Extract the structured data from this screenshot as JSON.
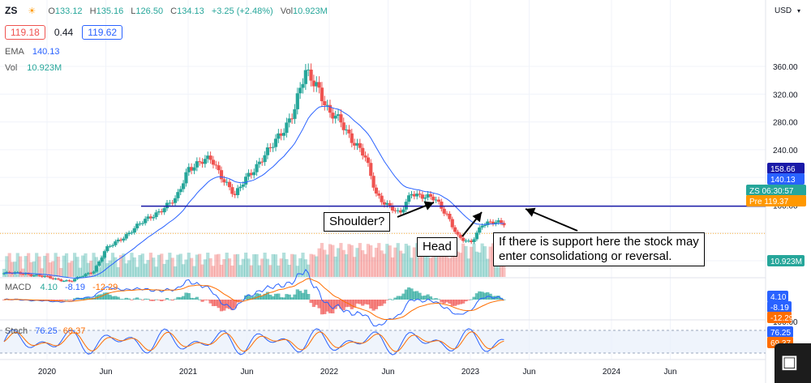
{
  "header": {
    "symbol": "ZS",
    "open_label": "O",
    "open": "133.12",
    "high_label": "H",
    "high": "135.16",
    "low_label": "L",
    "low": "126.50",
    "close_label": "C",
    "close": "134.13",
    "change": "+3.25 (+2.48%)",
    "vol_label": "Vol",
    "vol": "10.923M",
    "bid": "119.18",
    "spread": "0.44",
    "ask": "119.62",
    "ema_label": "EMA",
    "ema": "140.13",
    "vol_row_label": "Vol",
    "vol_row_value": "10.923M"
  },
  "axis": {
    "currency": "USD",
    "price_ticks": [
      "360.00",
      "320.00",
      "280.00",
      "240.00",
      "200.00",
      "160.00",
      "80.00"
    ],
    "time_labels": [
      "2020",
      "Jun",
      "2021",
      "Jun",
      "2022",
      "Jun",
      "2023",
      "Jun",
      "2024",
      "Jun"
    ],
    "stoch_ticks": [
      "100.00"
    ]
  },
  "badges": {
    "line": "158.66",
    "ema": "140.13",
    "symbol": "ZS",
    "countdown": "06:30:57",
    "pre_label": "Pre",
    "pre": "119.37",
    "volume": "10.923M",
    "macd1": "4.10",
    "macd2": "-8.19",
    "macd3": "-12.29",
    "stoch1": "76.25",
    "stoch2": "69.37"
  },
  "macd_legend": {
    "label": "MACD",
    "v1": "4.10",
    "v2": "-8.19",
    "v3": "-12.29"
  },
  "stoch_legend": {
    "label": "Stoch",
    "v1": "76.25",
    "v2": "69.37"
  },
  "annotations": {
    "shoulder": "Shoulder?",
    "head": "Head",
    "note_line1": "If there is support here the stock may",
    "note_line2": "enter consolidationg or reversal."
  },
  "colors": {
    "up": "#26a69a",
    "down": "#ef5350",
    "ema": "#2962ff",
    "hline": "#1a1aa8",
    "macd": "#2962ff",
    "signal": "#ff6d00",
    "stoch_k": "#2962ff",
    "stoch_d": "#ff6d00",
    "pre": "#ff9800"
  },
  "chart_data": {
    "type": "candlestick",
    "symbol": "ZS",
    "interval": "weekly",
    "ylim": [
      50,
      380
    ],
    "horizontal_line": 158.66,
    "ema_last": 140.13,
    "x": [
      "2019-11",
      "2020-01",
      "2020-03",
      "2020-05",
      "2020-06",
      "2020-08",
      "2020-10",
      "2020-12",
      "2021-01",
      "2021-03",
      "2021-05",
      "2021-06",
      "2021-08",
      "2021-10",
      "2021-11",
      "2021-12",
      "2022-01",
      "2022-02",
      "2022-04",
      "2022-05",
      "2022-07",
      "2022-08",
      "2022-09",
      "2022-10",
      "2022-11",
      "2022-12",
      "2023-01",
      "2023-02"
    ],
    "close": [
      62,
      56,
      50,
      66,
      96,
      121,
      146,
      168,
      215,
      226,
      172,
      202,
      240,
      296,
      350,
      336,
      290,
      280,
      230,
      176,
      145,
      180,
      172,
      168,
      148,
      112,
      105,
      134
    ]
  }
}
